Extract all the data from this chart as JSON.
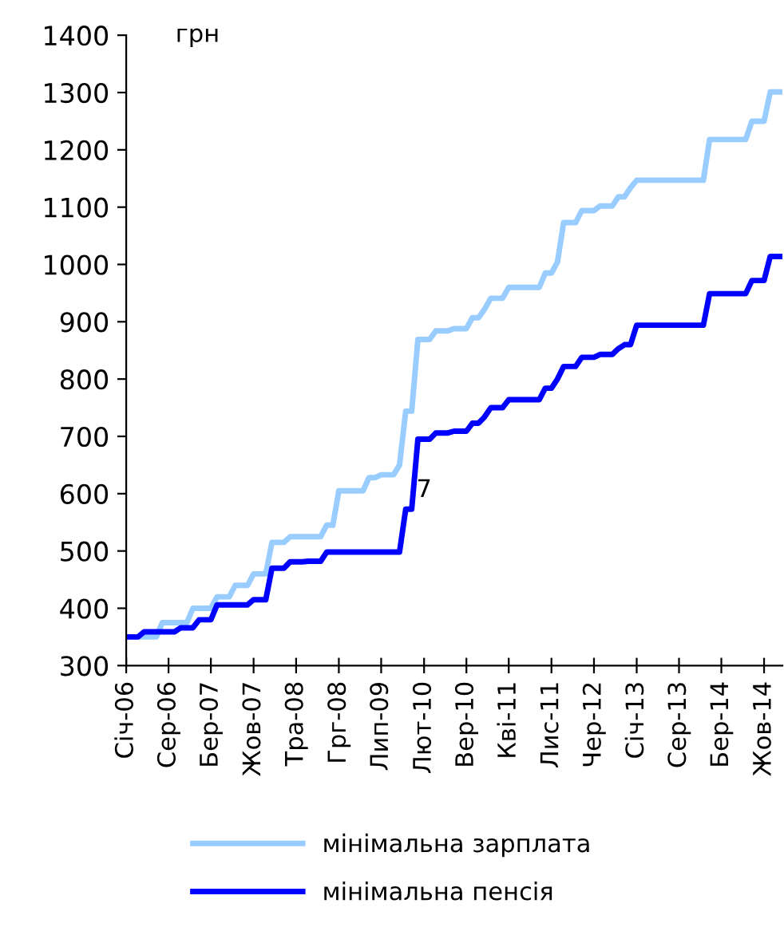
{
  "chart_data": {
    "type": "line",
    "ylabel": "грн",
    "x": [
      "2006-01",
      "2006-02",
      "2006-03",
      "2006-04",
      "2006-05",
      "2006-06",
      "2006-07",
      "2006-08",
      "2006-09",
      "2006-10",
      "2006-11",
      "2006-12",
      "2007-01",
      "2007-02",
      "2007-03",
      "2007-04",
      "2007-05",
      "2007-06",
      "2007-07",
      "2007-08",
      "2007-09",
      "2007-10",
      "2007-11",
      "2007-12",
      "2008-01",
      "2008-02",
      "2008-03",
      "2008-04",
      "2008-05",
      "2008-06",
      "2008-07",
      "2008-08",
      "2008-09",
      "2008-10",
      "2008-11",
      "2008-12",
      "2009-01",
      "2009-02",
      "2009-03",
      "2009-04",
      "2009-05",
      "2009-06",
      "2009-07",
      "2009-08",
      "2009-09",
      "2009-10",
      "2009-11",
      "2009-12",
      "2010-01",
      "2010-02",
      "2010-03",
      "2010-04",
      "2010-05",
      "2010-06",
      "2010-07",
      "2010-08",
      "2010-09",
      "2010-10",
      "2010-11",
      "2010-12",
      "2011-01",
      "2011-02",
      "2011-03",
      "2011-04",
      "2011-05",
      "2011-06",
      "2011-07",
      "2011-08",
      "2011-09",
      "2011-10",
      "2011-11",
      "2011-12",
      "2012-01",
      "2012-02",
      "2012-03",
      "2012-04",
      "2012-05",
      "2012-06",
      "2012-07",
      "2012-08",
      "2012-09",
      "2012-10",
      "2012-11",
      "2012-12",
      "2013-01",
      "2013-02",
      "2013-03",
      "2013-04",
      "2013-05",
      "2013-06",
      "2013-07",
      "2013-08",
      "2013-09",
      "2013-10",
      "2013-11",
      "2013-12",
      "2014-01",
      "2014-02",
      "2014-03",
      "2014-04",
      "2014-05",
      "2014-06",
      "2014-07",
      "2014-08",
      "2014-09",
      "2014-10",
      "2014-11",
      "2014-12",
      "2015-01"
    ],
    "series": [
      {
        "name": "мінімальна зарплата",
        "color": "#99ccff",
        "values": [
          null,
          350,
          350,
          350,
          350,
          350,
          375,
          375,
          375,
          375,
          375,
          400,
          400,
          400,
          400,
          420,
          420,
          420,
          440,
          440,
          440,
          460,
          460,
          460,
          515,
          515,
          515,
          525,
          525,
          525,
          525,
          525,
          525,
          545,
          545,
          605,
          605,
          605,
          605,
          605,
          628,
          628,
          633,
          633,
          633,
          650,
          744,
          744,
          869,
          869,
          869,
          884,
          884,
          884,
          888,
          888,
          888,
          907,
          907,
          922,
          941,
          941,
          941,
          960,
          960,
          960,
          960,
          960,
          960,
          985,
          985,
          1004,
          1073,
          1073,
          1073,
          1094,
          1094,
          1094,
          1102,
          1102,
          1102,
          1118,
          1118,
          1134,
          1147,
          1147,
          1147,
          1147,
          1147,
          1147,
          1147,
          1147,
          1147,
          1147,
          1147,
          1147,
          1218,
          1218,
          1218,
          1218,
          1218,
          1218,
          1218,
          1250,
          1250,
          1250,
          1301,
          1301,
          1301
        ]
      },
      {
        "name": "мінімальна пенсія",
        "color": "#0000ff",
        "values": [
          350,
          350,
          350,
          359,
          359,
          359,
          359,
          359,
          359,
          366,
          366,
          366,
          380,
          380,
          380,
          406,
          406,
          406,
          406,
          406,
          406,
          415,
          415,
          415,
          470,
          470,
          470,
          481,
          481,
          481,
          482,
          482,
          482,
          498,
          498,
          498,
          498,
          498,
          498,
          498,
          498,
          498,
          498,
          498,
          498,
          498,
          573,
          573,
          695,
          695,
          695,
          706,
          706,
          706,
          709,
          709,
          709,
          723,
          723,
          734,
          750,
          750,
          750,
          764,
          764,
          764,
          764,
          764,
          764,
          784,
          784,
          800,
          822,
          822,
          822,
          838,
          838,
          838,
          843,
          843,
          843,
          853,
          860,
          860,
          894,
          894,
          894,
          894,
          894,
          894,
          894,
          894,
          894,
          894,
          894,
          894,
          949,
          949,
          949,
          949,
          949,
          949,
          949,
          972,
          972,
          972,
          1014,
          1014,
          1014
        ]
      }
    ],
    "xlim": [
      "2006-01",
      "2015-01"
    ],
    "xticks": [
      {
        "value": "2006-01",
        "label": "Січ-06"
      },
      {
        "value": "2006-08",
        "label": "Сер-06"
      },
      {
        "value": "2007-03",
        "label": "Бер-07"
      },
      {
        "value": "2007-10",
        "label": "Жов-07"
      },
      {
        "value": "2008-05",
        "label": "Тра-08"
      },
      {
        "value": "2008-12",
        "label": "Грг-08"
      },
      {
        "value": "2009-07",
        "label": "Лип-09"
      },
      {
        "value": "2010-02",
        "label": "Лют-10"
      },
      {
        "value": "2010-09",
        "label": "Вер-10"
      },
      {
        "value": "2011-04",
        "label": "Кві-11"
      },
      {
        "value": "2011-11",
        "label": "Лис-11"
      },
      {
        "value": "2012-06",
        "label": "Чер-12"
      },
      {
        "value": "2013-01",
        "label": "Січ-13"
      },
      {
        "value": "2013-08",
        "label": "Сер-13"
      },
      {
        "value": "2014-03",
        "label": "Бер-14"
      },
      {
        "value": "2014-10",
        "label": "Жов-14"
      }
    ],
    "ylim": [
      300,
      1400
    ],
    "yticks": [
      300,
      400,
      500,
      600,
      700,
      800,
      900,
      1000,
      1100,
      1200,
      1300,
      1400
    ],
    "annotations": [
      {
        "text": "7",
        "x": "2010-02",
        "y": 606
      }
    ],
    "grid": false,
    "legend": "bottom",
    "marker": "none",
    "line_style": "solid"
  }
}
